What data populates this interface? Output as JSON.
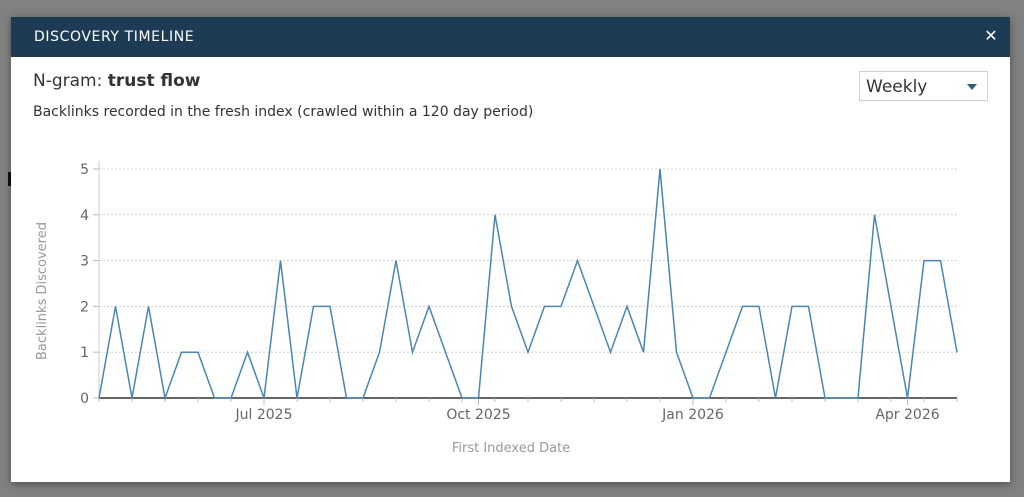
{
  "modal": {
    "title": "DISCOVERY TIMELINE",
    "close_icon": "close-icon"
  },
  "ngram": {
    "label": "N-gram:",
    "term": "trust flow"
  },
  "subtitle": "Backlinks recorded in the fresh index (crawled within a 120 day period)",
  "period_select": {
    "selected": "Weekly"
  },
  "colors": {
    "header": "#1d3b55",
    "line": "#4a86b4"
  },
  "chart_data": {
    "type": "line",
    "xlabel": "First Indexed Date",
    "ylabel": "Backlinks Discovered",
    "ylim": [
      0,
      5
    ],
    "yticks": [
      "0",
      "1",
      "2",
      "3",
      "4",
      "5"
    ],
    "xticks": [
      {
        "label": "Jul 2025",
        "week": 10
      },
      {
        "label": "Oct 2025",
        "week": 23
      },
      {
        "label": "Jan 2026",
        "week": 36
      },
      {
        "label": "Apr 2026",
        "week": 49
      }
    ],
    "grid": true,
    "series": [
      {
        "values": [
          0,
          2,
          0,
          2,
          0,
          1,
          1,
          0,
          0,
          1,
          0,
          3,
          0,
          2,
          2,
          0,
          0,
          1,
          3,
          1,
          2,
          1,
          0,
          0,
          4,
          2,
          1,
          2,
          2,
          3,
          2,
          1,
          2,
          1,
          5,
          1,
          0,
          0,
          1,
          2,
          2,
          0,
          2,
          2,
          0,
          0,
          0,
          4,
          2,
          0,
          3,
          3,
          1
        ]
      }
    ]
  }
}
